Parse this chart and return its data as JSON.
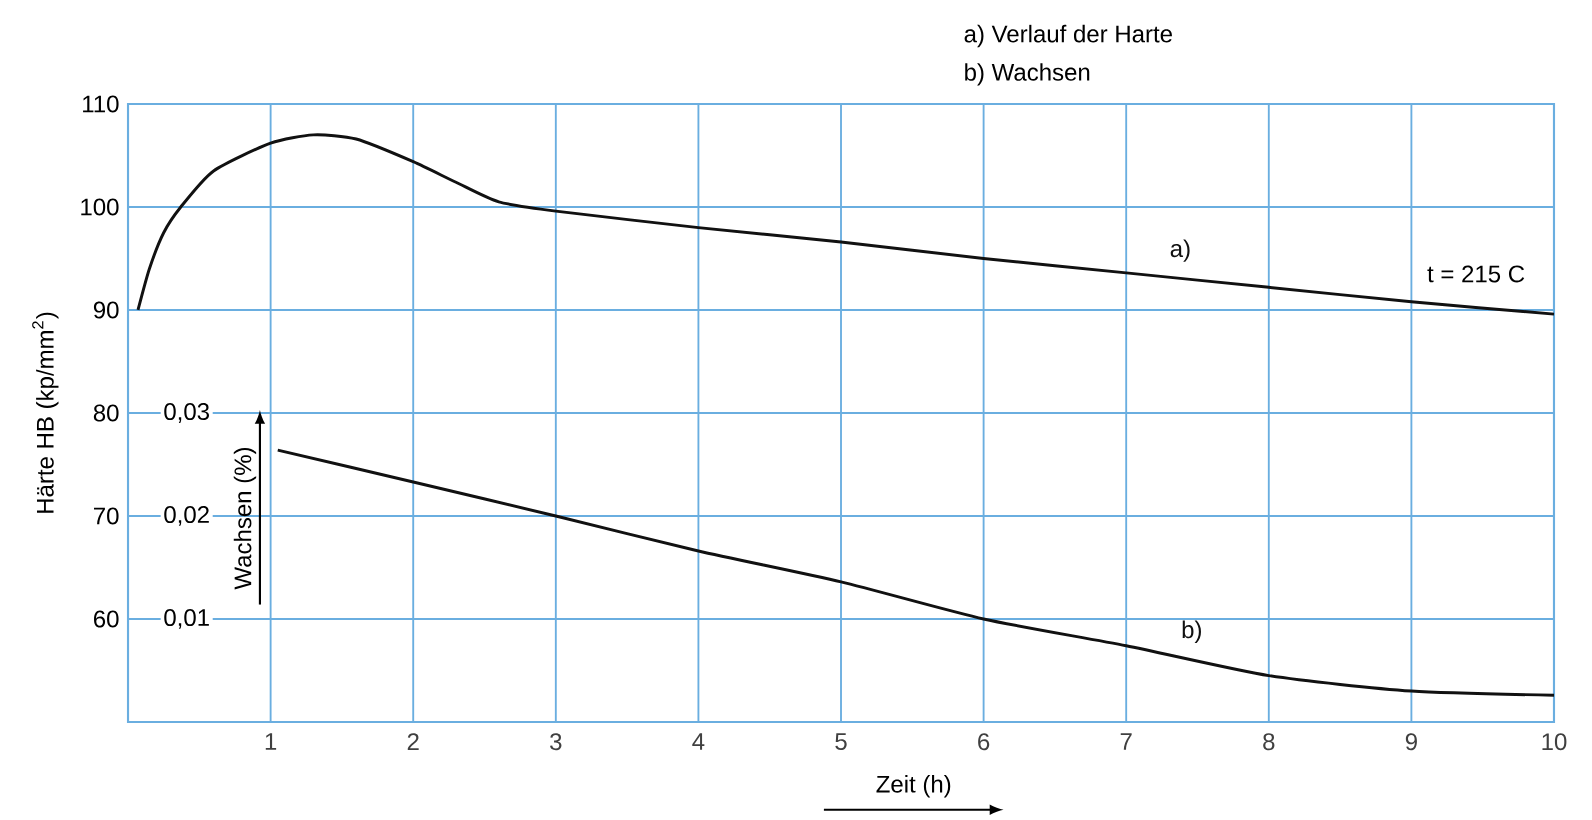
{
  "chart_data": {
    "type": "line",
    "xlabel": "Zeit (h)",
    "ylabel": "Härte HB (kp/mm$^{2}$)",
    "y2label": "Wachsen (%)",
    "xlim": [
      0,
      10
    ],
    "xticks": [
      1,
      2,
      3,
      4,
      5,
      6,
      7,
      8,
      9,
      10
    ],
    "ylim": [
      50,
      110
    ],
    "yticks": [
      60,
      70,
      80,
      90,
      100,
      110
    ],
    "y2lim": [
      0,
      0.06
    ],
    "y2ticks": [
      {
        "value": 0.01,
        "label": "0,01"
      },
      {
        "value": 0.02,
        "label": "0,02"
      },
      {
        "value": 0.03,
        "label": "0,03"
      }
    ],
    "grid": true,
    "marker": "none",
    "line_style": "solid",
    "series": [
      {
        "name": "a)",
        "color": "#111111",
        "x": [
          0.07,
          0.15,
          0.25,
          0.37,
          0.6,
          1,
          1.3,
          1.6,
          2,
          2.3,
          2.6,
          3,
          4,
          5,
          6,
          7,
          8,
          9,
          10
        ],
        "values": [
          90,
          94,
          97.5,
          100,
          103.5,
          106.2,
          107,
          106.6,
          104.4,
          102.4,
          100.5,
          99.6,
          98,
          96.6,
          95,
          93.6,
          92.2,
          90.8,
          89.6
        ]
      },
      {
        "name": "b)",
        "color": "#111111",
        "axis": "y2",
        "x": [
          1.05,
          2,
          3,
          4,
          5,
          6,
          7,
          8,
          9,
          10
        ],
        "values": [
          0.0264,
          0.0233,
          0.02,
          0.0166,
          0.0136,
          0.01,
          0.0074,
          0.0045,
          0.003,
          0.0026
        ]
      }
    ],
    "annotations": [
      "a) Verlauf der Harte",
      "b) Wachsen",
      "t = 215 C"
    ]
  }
}
